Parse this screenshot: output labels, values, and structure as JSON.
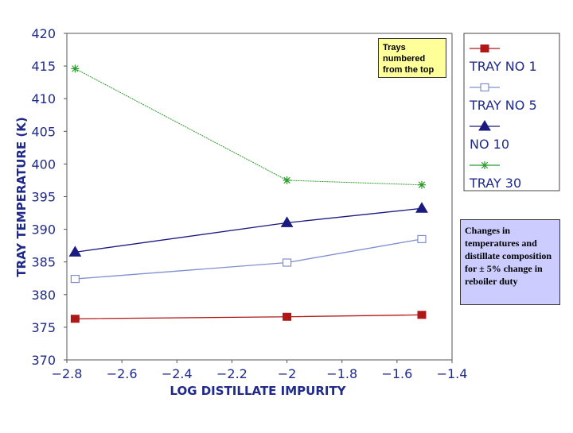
{
  "chart_data": {
    "type": "line",
    "title": "",
    "xlabel": "LOG DISTILLATE IMPURITY",
    "ylabel": "TRAY TEMPERATURE (K)",
    "xlim": [
      -2.8,
      -1.4
    ],
    "ylim": [
      370,
      420
    ],
    "x_ticks": [
      "-2.8",
      "-2.6",
      "-2.4",
      "-2.2",
      "-2",
      "-1.8",
      "-1.6",
      "-1.4"
    ],
    "y_ticks": [
      "370",
      "375",
      "380",
      "385",
      "390",
      "395",
      "400",
      "405",
      "410",
      "415",
      "420"
    ],
    "x": [
      -2.77,
      -2.0,
      -1.51
    ],
    "series": [
      {
        "name": "TRAY NO 1",
        "values": [
          376.3,
          376.6,
          376.9
        ],
        "color": "#b01818",
        "marker": "square"
      },
      {
        "name": "TRAY NO 5",
        "values": [
          382.4,
          384.9,
          388.5
        ],
        "color": "#7f8fd0",
        "marker": "open-square"
      },
      {
        "name": "NO 10",
        "values": [
          386.5,
          391.0,
          393.2
        ],
        "color": "#1a1a80",
        "marker": "triangle"
      },
      {
        "name": "TRAY 30",
        "values": [
          414.6,
          397.5,
          396.8
        ],
        "color": "#2a9a2a",
        "marker": "star"
      }
    ],
    "annotations": [
      {
        "text": "Trays numbered from the top"
      },
      {
        "text": "Changes in temperatures and distillate composition for ± 5% change in reboiler duty"
      }
    ],
    "legend_position": "right"
  }
}
